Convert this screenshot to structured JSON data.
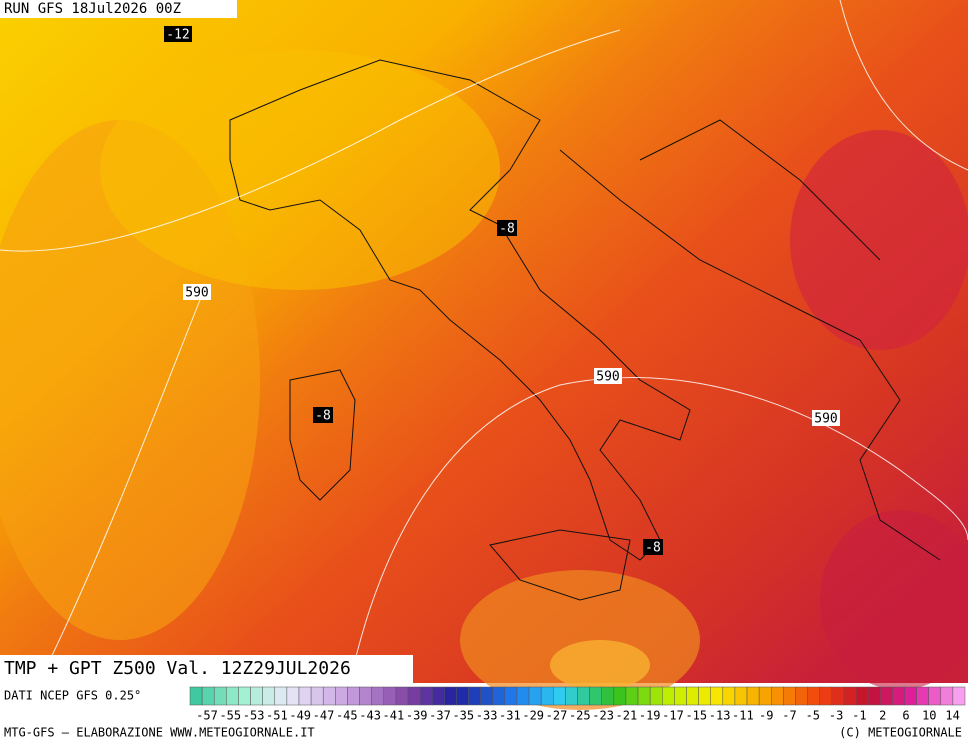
{
  "header": {
    "run": "RUN GFS 18Jul2026 00Z"
  },
  "map": {
    "labels": [
      {
        "text": "-12",
        "kind": "temperature"
      },
      {
        "text": "-8",
        "kind": "temperature"
      },
      {
        "text": "-8",
        "kind": "temperature"
      },
      {
        "text": "-8",
        "kind": "temperature"
      },
      {
        "text": "590",
        "kind": "height"
      },
      {
        "text": "590",
        "kind": "height"
      },
      {
        "text": "590",
        "kind": "height"
      }
    ]
  },
  "footer": {
    "title": "TMP + GPT Z500 Val. 12Z29JUL2026",
    "source": "DATI NCEP GFS 0.25°",
    "credits_left": "MTG-GFS — ELABORAZIONE WWW.METEOGIORNALE.IT",
    "credits_right": "(C) METEOGIORNALE"
  },
  "legend": {
    "labels": [
      -57,
      -55,
      -53,
      -51,
      -49,
      -47,
      -45,
      -43,
      -41,
      -39,
      -37,
      -35,
      -33,
      -31,
      -29,
      -27,
      -25,
      -23,
      -21,
      -19,
      -17,
      -15,
      -13,
      -11,
      -9,
      -7,
      -5,
      -3,
      -1,
      2,
      6,
      10,
      14
    ]
  }
}
